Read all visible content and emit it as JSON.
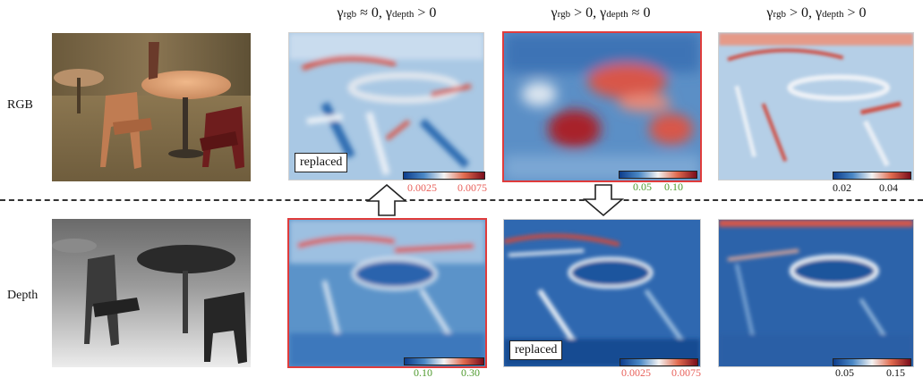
{
  "columns": [
    {
      "title": "γ_rgb ≈ 0, γ_depth > 0",
      "g1": "γ",
      "s1": "rgb",
      "rel1": " ≈ 0,  ",
      "g2": "γ",
      "s2": "depth",
      "rel2": " > 0"
    },
    {
      "title": "γ_rgb > 0, γ_depth ≈ 0",
      "g1": "γ",
      "s1": "rgb",
      "rel1": " > 0,  ",
      "g2": "γ",
      "s2": "depth",
      "rel2": " ≈ 0"
    },
    {
      "title": "γ_rgb > 0, γ_depth > 0",
      "g1": "γ",
      "s1": "rgb",
      "rel1": " > 0,  ",
      "g2": "γ",
      "s2": "depth",
      "rel2": " > 0"
    }
  ],
  "rows": {
    "rgb": "RGB",
    "depth": "Depth"
  },
  "replaced_label": "replaced",
  "colorbars": {
    "rgb_col1": {
      "low": "0.0025",
      "high": "0.0075",
      "color": "#e8605a"
    },
    "rgb_col2": {
      "low": "0.05",
      "high": "0.10",
      "color": "#4f9a2e"
    },
    "rgb_col3": {
      "low": "0.02",
      "high": "0.04",
      "color": "#111111"
    },
    "depth_col1": {
      "low": "0.10",
      "high": "0.30",
      "color": "#4f9a2e"
    },
    "depth_col2": {
      "low": "0.0025",
      "high": "0.0075",
      "color": "#e8605a"
    },
    "depth_col3": {
      "low": "0.05",
      "high": "0.15",
      "color": "#111111"
    }
  },
  "colors": {
    "highlight_border": "#e03c3c",
    "cmap_low": "#0d3d8c",
    "cmap_mid": "#f3f3f3",
    "cmap_high": "#7a0d1c"
  },
  "icons": [
    "arrow-up-icon",
    "arrow-down-icon"
  ]
}
